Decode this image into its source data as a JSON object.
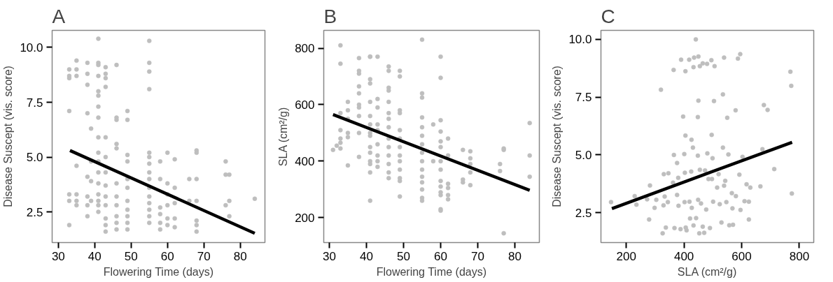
{
  "chart_data": [
    {
      "type": "scatter",
      "title": "A",
      "xlabel": "Flowering Time (days)",
      "ylabel": "Disease Suscept (vis. score)",
      "xlim": [
        28.3,
        86.8
      ],
      "ylim": [
        1.1,
        10.78
      ],
      "xticks": [
        30,
        40,
        50,
        60,
        70,
        80
      ],
      "yticks": [
        {
          "value": 2.5,
          "label": "2.5"
        },
        {
          "value": 5,
          "label": "5.0"
        },
        {
          "value": 7.5,
          "label": "7.5"
        },
        {
          "value": 10,
          "label": "10.0"
        }
      ],
      "grid": false,
      "marker": "circle",
      "series": [
        {
          "color": "#bebebe",
          "x": [
            33,
            33,
            33,
            33,
            33,
            33,
            33,
            35,
            35,
            35,
            35,
            35,
            35,
            35,
            38,
            38,
            38,
            38,
            38,
            38,
            38,
            38,
            39,
            39,
            39,
            39,
            41,
            41,
            41,
            41,
            41,
            41,
            41,
            41,
            41,
            41,
            41,
            41,
            41,
            41,
            41,
            41,
            41,
            43,
            43,
            43,
            43,
            43,
            43,
            43,
            43,
            43,
            43,
            43,
            43,
            43,
            46,
            46,
            46,
            46,
            46,
            46,
            46,
            46,
            46,
            46,
            46,
            49,
            49,
            49,
            49,
            49,
            49,
            49,
            49,
            49,
            49,
            49,
            55,
            55,
            55,
            55,
            55,
            55,
            55,
            55,
            55,
            55,
            55,
            55,
            55,
            55,
            55,
            58,
            58,
            58,
            58,
            58,
            58,
            60,
            60,
            60,
            60,
            60,
            60,
            62,
            62,
            62,
            62,
            62,
            66,
            66,
            68,
            68,
            68,
            68,
            68,
            68,
            68,
            76,
            76,
            76,
            77,
            77,
            77,
            84
          ],
          "values": [
            8.6,
            8.7,
            9.0,
            7.1,
            3.3,
            3.0,
            1.9,
            9.4,
            9.0,
            8.7,
            4.6,
            3.3,
            3.0,
            2.8,
            9.3,
            8.8,
            8.3,
            7.0,
            4.1,
            3.2,
            2.8,
            2.3,
            6.3,
            4.8,
            3.9,
            3.0,
            10.4,
            9.3,
            9.2,
            8.7,
            8.0,
            7.8,
            7.3,
            6.8,
            5.9,
            5.2,
            4.8,
            4.3,
            3.8,
            3.3,
            3.0,
            2.8,
            2.5,
            9.1,
            8.8,
            8.6,
            8.2,
            5.9,
            5.0,
            4.3,
            3.7,
            3.2,
            2.8,
            2.2,
            1.9,
            1.6,
            9.2,
            6.8,
            6.7,
            5.6,
            5.4,
            3.8,
            3.2,
            2.8,
            2.3,
            2.0,
            1.7,
            7.1,
            6.7,
            5.1,
            4.8,
            4.0,
            3.6,
            3.0,
            2.6,
            2.3,
            2.0,
            1.7,
            10.3,
            9.3,
            8.9,
            8.1,
            5.2,
            5.0,
            4.7,
            4.3,
            4.0,
            3.6,
            3.2,
            2.9,
            2.6,
            2.3,
            2.0,
            4.8,
            4.0,
            2.7,
            2.4,
            2.0,
            1.7,
            5.2,
            3.8,
            3.3,
            2.8,
            2.2,
            1.9,
            4.9,
            3.6,
            2.9,
            2.2,
            1.8,
            4.0,
            3.0,
            5.3,
            5.2,
            4.0,
            3.0,
            2.1,
            1.9,
            1.6,
            4.8,
            4.2,
            2.8,
            4.2,
            3.0,
            2.3,
            3.1
          ]
        },
        {
          "type": "line",
          "marker": "none",
          "color": "#000000",
          "x": [
            33.2,
            84
          ],
          "values": [
            5.3,
            1.52
          ]
        }
      ]
    },
    {
      "type": "scatter",
      "title": "B",
      "xlabel": "Flowering Time (days)",
      "ylabel": "SLA (cm²/g)",
      "xlim": [
        28.5,
        86.6
      ],
      "ylim": [
        112,
        863
      ],
      "xticks": [
        30,
        40,
        50,
        60,
        70,
        80
      ],
      "yticks": [
        200,
        400,
        600,
        800
      ],
      "grid": false,
      "marker": "circle",
      "series": [
        {
          "color": "#bebebe",
          "x": [
            31,
            32,
            33,
            33,
            33,
            33,
            33,
            33,
            33,
            35,
            35,
            35,
            35,
            35,
            35,
            38,
            38,
            38,
            38,
            38,
            38,
            38,
            38,
            38,
            38,
            41,
            41,
            41,
            41,
            41,
            41,
            41,
            41,
            41,
            41,
            41,
            41,
            41,
            41,
            41,
            43,
            43,
            43,
            43,
            43,
            43,
            43,
            43,
            43,
            46,
            46,
            46,
            46,
            46,
            46,
            46,
            46,
            46,
            46,
            46,
            46,
            46,
            46,
            49,
            49,
            49,
            49,
            49,
            49,
            49,
            49,
            49,
            49,
            49,
            49,
            49,
            55,
            55,
            55,
            55,
            55,
            55,
            55,
            55,
            55,
            55,
            55,
            55,
            55,
            55,
            55,
            58,
            58,
            60,
            60,
            60,
            60,
            60,
            60,
            60,
            60,
            60,
            60,
            60,
            60,
            60,
            60,
            62,
            62,
            62,
            62,
            62,
            62,
            66,
            66,
            66,
            68,
            68,
            68,
            68,
            68,
            76,
            76,
            77,
            77,
            77,
            84,
            84,
            84
          ],
          "values": [
            440,
            455,
            810,
            745,
            570,
            510,
            480,
            465,
            445,
            610,
            580,
            550,
            500,
            485,
            385,
            765,
            720,
            710,
            665,
            640,
            600,
            590,
            560,
            500,
            415,
            770,
            770,
            690,
            675,
            610,
            560,
            530,
            500,
            490,
            450,
            430,
            400,
            390,
            360,
            260,
            770,
            620,
            590,
            530,
            510,
            460,
            420,
            400,
            380,
            735,
            720,
            660,
            650,
            610,
            570,
            550,
            520,
            480,
            450,
            420,
            390,
            360,
            340,
            720,
            700,
            580,
            570,
            510,
            480,
            450,
            420,
            400,
            370,
            340,
            330,
            275,
            830,
            640,
            625,
            555,
            520,
            490,
            460,
            430,
            400,
            370,
            345,
            325,
            300,
            270,
            260,
            530,
            400,
            770,
            695,
            545,
            505,
            470,
            450,
            400,
            370,
            330,
            310,
            290,
            280,
            230,
            225,
            480,
            420,
            320,
            305,
            280,
            265,
            440,
            335,
            325,
            435,
            410,
            390,
            360,
            315,
            390,
            365,
            445,
            440,
            145,
            535,
            420,
            345
          ]
        },
        {
          "type": "line",
          "marker": "none",
          "color": "#000000",
          "x": [
            31,
            84
          ],
          "values": [
            565,
            297
          ]
        }
      ]
    },
    {
      "type": "scatter",
      "title": "C",
      "xlabel": "SLA (cm²/g)",
      "ylabel": "Disease Suscept (vis. score)",
      "xlim": [
        112,
        850
      ],
      "ylim": [
        1.21,
        10.39
      ],
      "xticks": [
        200,
        400,
        600,
        800
      ],
      "yticks": [
        {
          "value": 2.5,
          "label": "2.5"
        },
        {
          "value": 5,
          "label": "5.0"
        },
        {
          "value": 7.5,
          "label": "7.5"
        },
        {
          "value": 10,
          "label": "10.0"
        }
      ],
      "grid": false,
      "marker": "circle",
      "series": [
        {
          "color": "#bebebe",
          "x": [
            147,
            229,
            235,
            282,
            279,
            272,
            304,
            298,
            320,
            326,
            330,
            333,
            329,
            337,
            346,
            344,
            364,
            365,
            362,
            367,
            376,
            380,
            376,
            381,
            390,
            388,
            397,
            401,
            405,
            405,
            403,
            402,
            406,
            409,
            418,
            419,
            421,
            425,
            426,
            427,
            431,
            433,
            435,
            433,
            441,
            442,
            450,
            448,
            448,
            450,
            453,
            449,
            455,
            455,
            459,
            465,
            465,
            470,
            473,
            477,
            480,
            481,
            485,
            490,
            495,
            496,
            497,
            499,
            501,
            504,
            506,
            515,
            520,
            524,
            530,
            535,
            535,
            539,
            539,
            543,
            547,
            550,
            554,
            557,
            566,
            568,
            570,
            579,
            580,
            587,
            592,
            595,
            596,
            603,
            610,
            617,
            625,
            625,
            630,
            665,
            672,
            677,
            690,
            713,
            769,
            772,
            774
          ],
          "values": [
            2.96,
            3.22,
            2.85,
            3.68,
            2.21,
            3.08,
            3.06,
            2.71,
            7.82,
            1.61,
            4.17,
            3.2,
            2.82,
            1.86,
            4.21,
            2.96,
            8.68,
            5.0,
            3.8,
            1.84,
            4.65,
            4.01,
            3.27,
            2.8,
            9.12,
            1.79,
            6.66,
            5.04,
            5.84,
            8.62,
            4.23,
            2.96,
            1.86,
            1.74,
            9.12,
            2.98,
            2.25,
            4.28,
            5.66,
            2.71,
            5.32,
            8.8,
            9.21,
            1.95,
            10.0,
            2.27,
            7.35,
            6.64,
            4.97,
            9.26,
            1.61,
            3.06,
            8.84,
            4.36,
            2.9,
            8.96,
            1.9,
            1.63,
            4.33,
            2.64,
            8.94,
            5.07,
            3.96,
            1.84,
            9.1,
            5.87,
            3.96,
            4.86,
            2.98,
            7.33,
            8.84,
            3.59,
            4.17,
            2.87,
            2.08,
            5.32,
            7.62,
            3.67,
            9.21,
            3.88,
            2.96,
            6.61,
            5.02,
            1.96,
            3.35,
            2.69,
            1.98,
            6.93,
            3.22,
            9.17,
            4.15,
            9.36,
            2.62,
            4.92,
            3.0,
            3.73,
            2.21,
            2.98,
            3.59,
            3.64,
            5.25,
            7.16,
            6.95,
            4.39,
            8.6,
            7.99,
            3.33
          ]
        },
        {
          "type": "line",
          "marker": "none",
          "color": "#000000",
          "x": [
            150,
            775
          ],
          "values": [
            2.68,
            5.55
          ]
        }
      ]
    }
  ]
}
